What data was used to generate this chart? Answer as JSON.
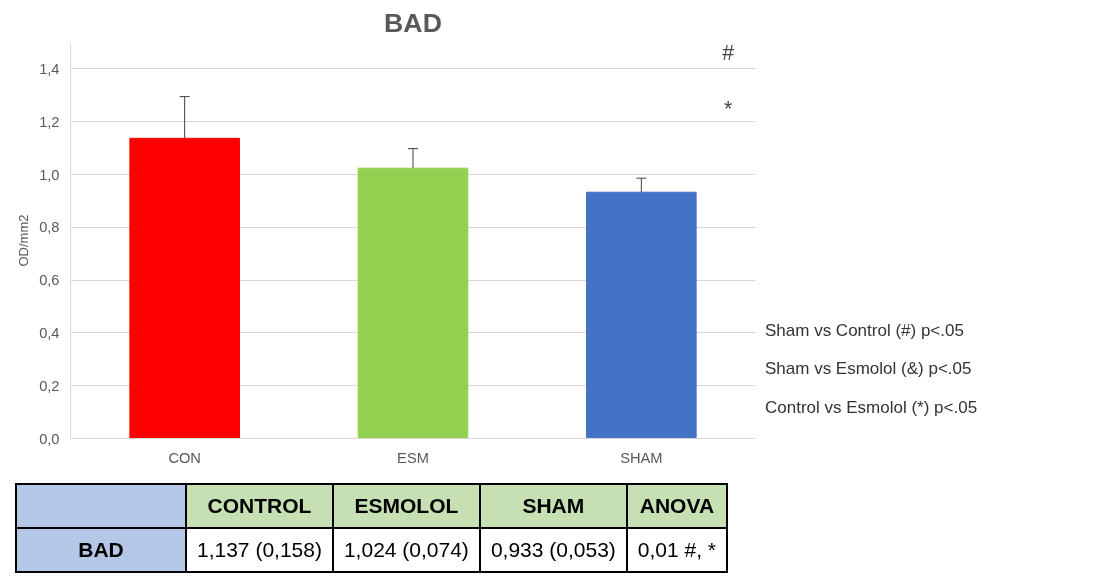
{
  "chart_data": {
    "type": "bar",
    "title": "BAD",
    "ylabel": "OD/mm2",
    "categories": [
      "CON",
      "ESM",
      "SHAM"
    ],
    "values": [
      1.137,
      1.024,
      0.933
    ],
    "errors": [
      0.158,
      0.074,
      0.053
    ],
    "colors": [
      "#ff0000",
      "#92d050",
      "#4472c4"
    ],
    "value_labels": [
      "1,137 (0,158)",
      "1,024 (0,074)",
      "0,933 (0,053)"
    ],
    "ylim": [
      0,
      1.5
    ],
    "yticks": [
      {
        "value": 0,
        "label": "0,0"
      },
      {
        "value": 0.2,
        "label": "0,2"
      },
      {
        "value": 0.4,
        "label": "0,4"
      },
      {
        "value": 0.6,
        "label": "0,6"
      },
      {
        "value": 0.8,
        "label": "0,8"
      },
      {
        "value": 1.0,
        "label": "1,0"
      },
      {
        "value": 1.2,
        "label": "1,2"
      },
      {
        "value": 1.4,
        "label": "1,4"
      }
    ],
    "grid": "y",
    "annotations": [
      "#",
      "*",
      "Sham vs Control (#) p<.05",
      "Sham vs Esmolol (&) p<.05",
      "Control vs Esmolol (*) p<.05",
      "BAD",
      "CONTROL",
      "ESMOLOL",
      "SHAM",
      "ANOVA",
      "0,01 #, *"
    ]
  }
}
